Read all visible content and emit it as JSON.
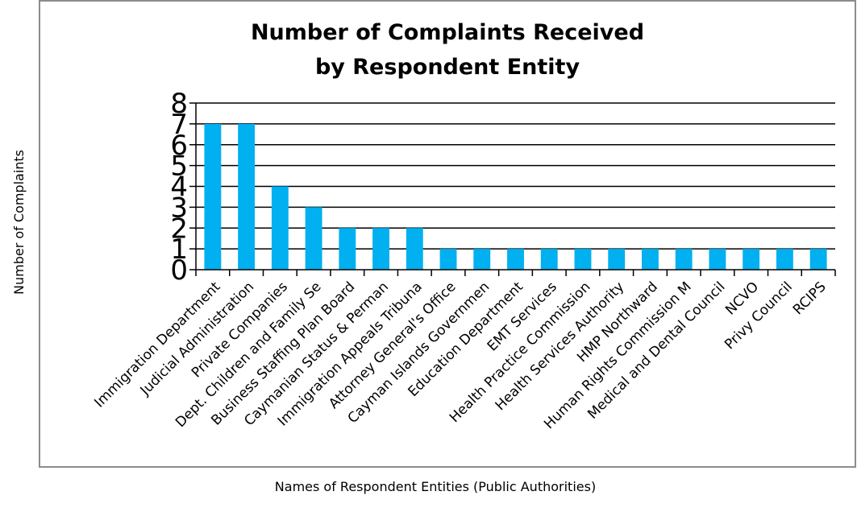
{
  "chart_data": {
    "type": "bar",
    "title_lines": [
      "Number of Complaints Received",
      "by Respondent Entity"
    ],
    "xlabel": "Names of Respondent Entities (Public Authorities)",
    "ylabel": "Number of Complaints",
    "ylim": [
      0,
      8
    ],
    "yticks": [
      "0",
      "1",
      "2",
      "3",
      "4",
      "5",
      "6",
      "7",
      "8"
    ],
    "grid": true,
    "legend": "none",
    "bar_color": "#00b0f0",
    "categories": [
      "Immigration Department",
      "Judicial Administration",
      "Private Companies",
      "Dept. Children and Family Se",
      "Business Staffing Plan Board",
      "Caymanian Status & Perman",
      "Immigration Appeals Tribuna",
      "Attorney General's Office",
      "Cayman Islands Governmen",
      "Education Department",
      "EMT Services",
      "Health Practice Commission",
      "Health Services Authority",
      "HMP Northward",
      "Human Rights Commission M",
      "Medical and Dental Council",
      "NCVO",
      "Privy Council",
      "RCIPS"
    ],
    "values": [
      7,
      7,
      4,
      3,
      2,
      2,
      2,
      1,
      1,
      1,
      1,
      1,
      1,
      1,
      1,
      1,
      1,
      1,
      1
    ]
  }
}
